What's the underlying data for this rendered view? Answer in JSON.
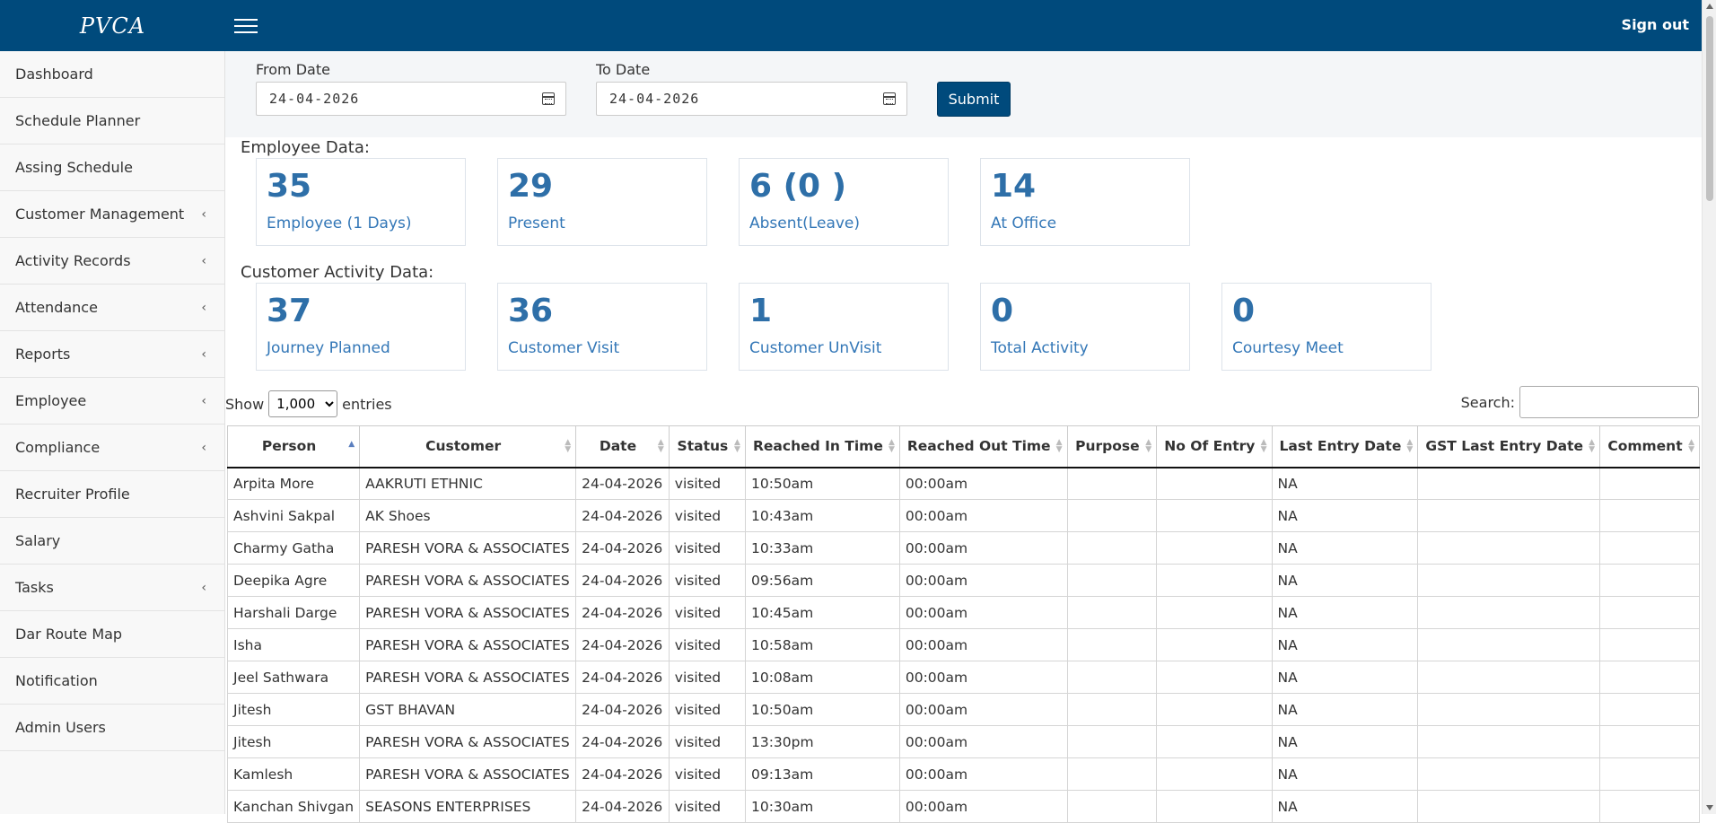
{
  "header": {
    "brand": "PVCA",
    "signout_label": "Sign out"
  },
  "sidebar": {
    "items": [
      {
        "label": "Dashboard",
        "has_submenu": false
      },
      {
        "label": "Schedule Planner",
        "has_submenu": false
      },
      {
        "label": "Assing Schedule",
        "has_submenu": false
      },
      {
        "label": "Customer Management",
        "has_submenu": true
      },
      {
        "label": "Activity Records",
        "has_submenu": true
      },
      {
        "label": "Attendance",
        "has_submenu": true
      },
      {
        "label": "Reports",
        "has_submenu": true
      },
      {
        "label": "Employee",
        "has_submenu": true
      },
      {
        "label": "Compliance",
        "has_submenu": true
      },
      {
        "label": "Recruiter Profile",
        "has_submenu": false
      },
      {
        "label": "Salary",
        "has_submenu": false
      },
      {
        "label": "Tasks",
        "has_submenu": true
      },
      {
        "label": "Dar Route Map",
        "has_submenu": false
      },
      {
        "label": "Notification",
        "has_submenu": false
      },
      {
        "label": "Admin Users",
        "has_submenu": false
      }
    ]
  },
  "filters": {
    "from_label": "From Date",
    "from_value": "24-04-2026",
    "to_label": "To Date",
    "to_value": "24-04-2026",
    "submit_label": "Submit"
  },
  "employee_section": {
    "title": "Employee Data:",
    "cards": [
      {
        "value": "35",
        "label": "Employee (1 Days)"
      },
      {
        "value": "29",
        "label": "Present"
      },
      {
        "value": "6 (0 )",
        "label": "Absent(Leave)"
      },
      {
        "value": "14",
        "label": "At Office"
      }
    ]
  },
  "customer_section": {
    "title": "Customer Activity Data:",
    "cards": [
      {
        "value": "37",
        "label": "Journey Planned"
      },
      {
        "value": "36",
        "label": "Customer Visit"
      },
      {
        "value": "1",
        "label": "Customer UnVisit"
      },
      {
        "value": "0",
        "label": "Total Activity"
      },
      {
        "value": "0",
        "label": "Courtesy Meet"
      }
    ]
  },
  "table_controls": {
    "show_label": "Show",
    "entries_value": "1,000",
    "entries_label": "entries",
    "search_label": "Search:",
    "search_value": ""
  },
  "table": {
    "columns": [
      "Person",
      "Customer",
      "Date",
      "Status",
      "Reached In Time",
      "Reached Out Time",
      "Purpose",
      "No Of Entry",
      "Last Entry Date",
      "GST Last Entry Date",
      "Comment"
    ],
    "sorted_column": "Person",
    "rows": [
      [
        "Arpita More",
        "AAKRUTI ETHNIC",
        "24-04-2026",
        "visited",
        "10:50am",
        "00:00am",
        "",
        "",
        "NA",
        "",
        ""
      ],
      [
        "Ashvini Sakpal",
        "AK Shoes",
        "24-04-2026",
        "visited",
        "10:43am",
        "00:00am",
        "",
        "",
        "NA",
        "",
        ""
      ],
      [
        "Charmy Gatha",
        "PARESH VORA & ASSOCIATES",
        "24-04-2026",
        "visited",
        "10:33am",
        "00:00am",
        "",
        "",
        "NA",
        "",
        ""
      ],
      [
        "Deepika Agre",
        "PARESH VORA & ASSOCIATES",
        "24-04-2026",
        "visited",
        "09:56am",
        "00:00am",
        "",
        "",
        "NA",
        "",
        ""
      ],
      [
        "Harshali Darge",
        "PARESH VORA & ASSOCIATES",
        "24-04-2026",
        "visited",
        "10:45am",
        "00:00am",
        "",
        "",
        "NA",
        "",
        ""
      ],
      [
        "Isha",
        "PARESH VORA & ASSOCIATES",
        "24-04-2026",
        "visited",
        "10:58am",
        "00:00am",
        "",
        "",
        "NA",
        "",
        ""
      ],
      [
        "Jeel Sathwara",
        "PARESH VORA & ASSOCIATES",
        "24-04-2026",
        "visited",
        "10:08am",
        "00:00am",
        "",
        "",
        "NA",
        "",
        ""
      ],
      [
        "Jitesh",
        "GST BHAVAN",
        "24-04-2026",
        "visited",
        "10:50am",
        "00:00am",
        "",
        "",
        "NA",
        "",
        ""
      ],
      [
        "Jitesh",
        "PARESH VORA & ASSOCIATES",
        "24-04-2026",
        "visited",
        "13:30pm",
        "00:00am",
        "",
        "",
        "NA",
        "",
        ""
      ],
      [
        "Kamlesh",
        "PARESH VORA & ASSOCIATES",
        "24-04-2026",
        "visited",
        "09:13am",
        "00:00am",
        "",
        "",
        "NA",
        "",
        ""
      ],
      [
        "Kanchan Shivgan",
        "SEASONS ENTERPRISES",
        "24-04-2026",
        "visited",
        "10:30am",
        "00:00am",
        "",
        "",
        "NA",
        "",
        ""
      ]
    ]
  },
  "icons": {
    "menu": "hamburger-icon",
    "calendar": "calendar-icon",
    "submenu": "chevron-left-icon",
    "sort": "sort-icon"
  }
}
